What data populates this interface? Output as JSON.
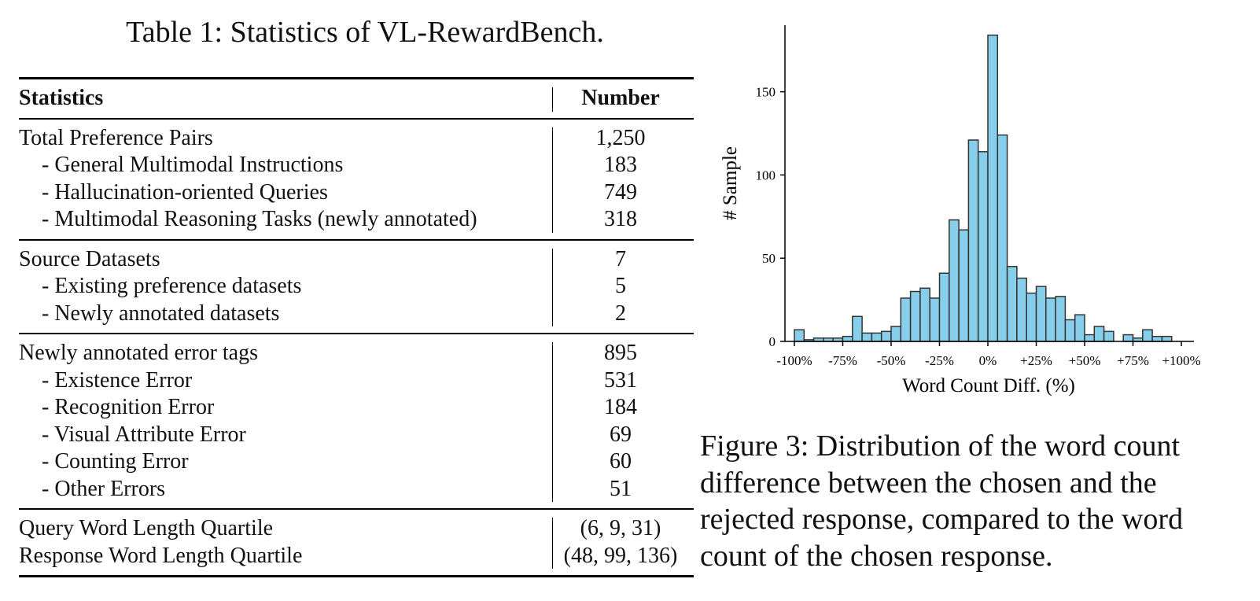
{
  "table": {
    "caption": "Table 1: Statistics of VL-RewardBench.",
    "header": {
      "col1": "Statistics",
      "col2": "Number"
    },
    "groups": [
      {
        "rows": [
          {
            "label": "Total Preference Pairs",
            "value": "1,250",
            "sub": false
          },
          {
            "label": "- General Multimodal Instructions",
            "value": "183",
            "sub": true
          },
          {
            "label": "- Hallucination-oriented Queries",
            "value": "749",
            "sub": true
          },
          {
            "label": "- Multimodal Reasoning Tasks (newly annotated)",
            "value": "318",
            "sub": true
          }
        ]
      },
      {
        "rows": [
          {
            "label": "Source Datasets",
            "value": "7",
            "sub": false
          },
          {
            "label": "- Existing preference datasets",
            "value": "5",
            "sub": true
          },
          {
            "label": "- Newly annotated datasets",
            "value": "2",
            "sub": true
          }
        ]
      },
      {
        "rows": [
          {
            "label": "Newly annotated error tags",
            "value": "895",
            "sub": false
          },
          {
            "label": "- Existence Error",
            "value": "531",
            "sub": true
          },
          {
            "label": "- Recognition Error",
            "value": "184",
            "sub": true
          },
          {
            "label": "- Visual Attribute Error",
            "value": "69",
            "sub": true
          },
          {
            "label": "- Counting Error",
            "value": "60",
            "sub": true
          },
          {
            "label": "- Other Errors",
            "value": "51",
            "sub": true
          }
        ]
      },
      {
        "rows": [
          {
            "label": "Query Word Length Quartile",
            "value": "(6, 9, 31)",
            "sub": false
          },
          {
            "label": "Response Word Length Quartile",
            "value": "(48, 99, 136)",
            "sub": false
          }
        ]
      }
    ]
  },
  "chart_data": {
    "type": "bar",
    "title": "",
    "xlabel": "Word Count Diff. (%)",
    "ylabel": "# Sample",
    "bin_edges_percent": [
      -100,
      -95,
      -90,
      -85,
      -80,
      -75,
      -70,
      -65,
      -60,
      -55,
      -50,
      -45,
      -40,
      -35,
      -30,
      -25,
      -20,
      -15,
      -10,
      -5,
      0,
      5,
      10,
      15,
      20,
      25,
      30,
      35,
      40,
      45,
      50,
      55,
      60,
      65,
      70,
      75,
      80,
      85,
      90,
      95,
      100
    ],
    "values": [
      7,
      1,
      2,
      2,
      2,
      3,
      15,
      5,
      5,
      6,
      9,
      26,
      30,
      32,
      26,
      41,
      73,
      67,
      121,
      114,
      184,
      124,
      45,
      38,
      29,
      33,
      26,
      27,
      13,
      16,
      4,
      9,
      6,
      0,
      4,
      2,
      7,
      3,
      3,
      0
    ],
    "xticks": [
      "-100%",
      "-75%",
      "-50%",
      "-25%",
      "0%",
      "+25%",
      "+50%",
      "+75%",
      "+100%"
    ],
    "yticks": [
      "0",
      "50",
      "100",
      "150"
    ],
    "xlim": [
      -100,
      100
    ],
    "ylim": [
      0,
      190
    ],
    "bar_color": "#87CEEB",
    "edge_color": "#333333",
    "grid": false
  },
  "figure": {
    "caption_lines": [
      "Figure 3: Distribution of the word count",
      "difference between the chosen and the",
      "rejected response, compared to the word",
      "count of the chosen response."
    ]
  }
}
